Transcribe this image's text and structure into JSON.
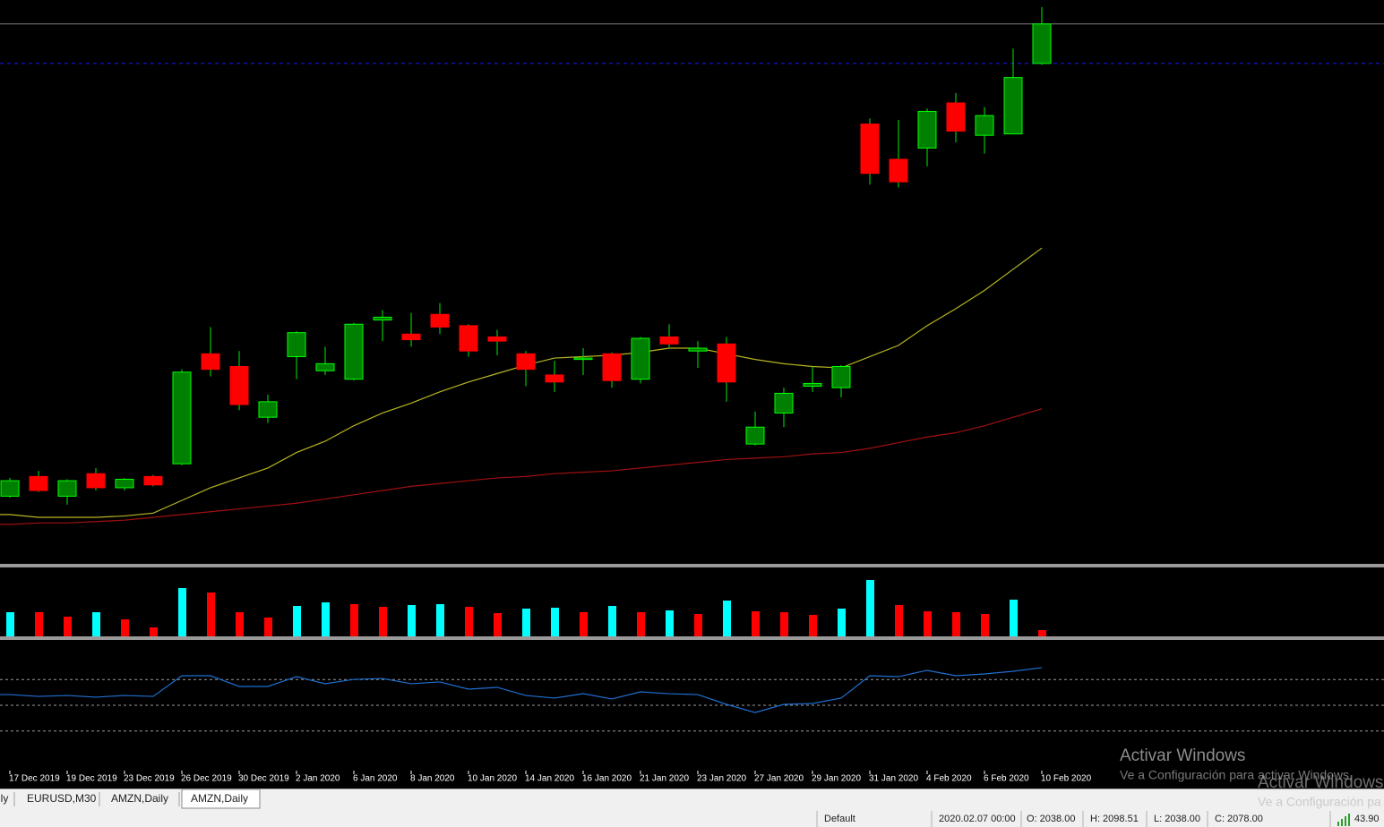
{
  "chart_data": {
    "type": "candlestick",
    "categories": [
      "17 Dec 2019",
      null,
      "19 Dec 2019",
      null,
      "23 Dec 2019",
      null,
      "26 Dec 2019",
      null,
      "30 Dec 2019",
      null,
      "2 Jan 2020",
      null,
      "6 Jan 2020",
      null,
      "8 Jan 2020",
      null,
      "10 Jan 2020",
      null,
      "14 Jan 2020",
      null,
      "16 Jan 2020",
      null,
      "21 Jan 2020",
      null,
      "23 Jan 2020",
      null,
      "27 Jan 2020",
      null,
      "29 Jan 2020",
      null,
      "31 Jan 2020",
      null,
      "4 Feb 2020",
      null,
      "6 Feb 2020",
      null,
      "10 Feb 2020"
    ],
    "open": [
      1781,
      1795,
      1781,
      1797,
      1787,
      1795,
      1804,
      1882,
      1873,
      1837,
      1880,
      1870,
      1864,
      1906,
      1896,
      1910,
      1902,
      1894,
      1882,
      1867,
      1878,
      1882,
      1864,
      1894,
      1884,
      1889,
      1818,
      1840,
      1859,
      1858,
      2045,
      2020,
      2028,
      2060,
      2037,
      2038,
      2088
    ],
    "high": [
      1794,
      1799,
      1793,
      1801,
      1794,
      1796,
      1871,
      1901,
      1884,
      1853,
      1898,
      1887,
      1904,
      1913,
      1911,
      1918,
      1903,
      1899,
      1884,
      1877,
      1886,
      1883,
      1894,
      1903,
      1891,
      1894,
      1841,
      1858,
      1873,
      1874,
      2049,
      2048,
      2056,
      2067,
      2057,
      2098.51,
      2128
    ],
    "low": [
      1780,
      1784,
      1775,
      1785,
      1785,
      1788,
      1803,
      1866,
      1842,
      1833,
      1864,
      1867,
      1863,
      1891,
      1887,
      1896,
      1880,
      1881,
      1859,
      1855,
      1867,
      1858,
      1861,
      1886,
      1872,
      1848,
      1817,
      1830,
      1855,
      1851,
      2002,
      2000,
      2015,
      2032,
      2024,
      2038,
      2087
    ],
    "close": [
      1792,
      1785,
      1792,
      1787,
      1793,
      1789,
      1869,
      1871,
      1846,
      1848,
      1897,
      1875,
      1903,
      1908,
      1892,
      1901,
      1884,
      1891,
      1871,
      1862,
      1879,
      1863,
      1893,
      1889,
      1886,
      1862,
      1830,
      1854,
      1861,
      1873,
      2010,
      2004,
      2054,
      2040,
      2051,
      2078,
      2116
    ],
    "up_color": "#008000",
    "up_border": "#00ff00",
    "down_color": "#ff0000",
    "wick_color": "#00c800",
    "ylim": [
      1733,
      2133
    ],
    "price_lines": [
      {
        "value": 2116,
        "color": "#808080",
        "dashed": false
      },
      {
        "value": 2088,
        "color": "#1a1aff",
        "dashed": true
      }
    ],
    "lines": [
      {
        "color": "#b5b520",
        "values": [
          1768,
          1766,
          1766,
          1766,
          1767,
          1769,
          1778,
          1787,
          1794,
          1801,
          1812,
          1820,
          1831,
          1840,
          1847,
          1855,
          1862,
          1868,
          1874,
          1879,
          1880,
          1881,
          1883,
          1886,
          1886,
          1882,
          1878,
          1875,
          1873,
          1872,
          1880,
          1888,
          1902,
          1914,
          1927,
          1942,
          1957
        ]
      },
      {
        "color": "#a01010",
        "values": [
          1761,
          1762,
          1762,
          1763,
          1764,
          1766,
          1768,
          1770,
          1772,
          1774,
          1776,
          1779,
          1782,
          1785,
          1788,
          1790,
          1792,
          1794,
          1795,
          1797,
          1798,
          1799,
          1801,
          1803,
          1805,
          1807,
          1808,
          1809,
          1811,
          1812,
          1815,
          1819,
          1823,
          1826,
          1831,
          1837,
          1843
        ]
      }
    ],
    "volume": {
      "ylim": [
        0,
        76
      ],
      "values": [
        27,
        27,
        22,
        27,
        19,
        10,
        54,
        49,
        27,
        21,
        34,
        38,
        36,
        33,
        35,
        36,
        33,
        26,
        31,
        32,
        27,
        34,
        27,
        29,
        25,
        40,
        28,
        27,
        24,
        31,
        63,
        35,
        28,
        27,
        25,
        41,
        7
      ],
      "colors": [
        "#00ffff",
        "#ff0000",
        "#ff0000",
        "#00ffff",
        "#ff0000",
        "#ff0000",
        "#00ffff",
        "#ff0000",
        "#ff0000",
        "#ff0000",
        "#00ffff",
        "#00ffff",
        "#ff0000",
        "#ff0000",
        "#00ffff",
        "#00ffff",
        "#ff0000",
        "#ff0000",
        "#00ffff",
        "#00ffff",
        "#ff0000",
        "#00ffff",
        "#ff0000",
        "#00ffff",
        "#ff0000",
        "#00ffff",
        "#ff0000",
        "#ff0000",
        "#ff0000",
        "#00ffff",
        "#00ffff",
        "#ff0000",
        "#ff0000",
        "#ff0000",
        "#ff0000",
        "#00ffff",
        "#ff0000"
      ]
    },
    "rsi": {
      "ylim": [
        0,
        100
      ],
      "levels": [
        70,
        50,
        30
      ],
      "color": "#1e6fd0",
      "values": [
        58.3,
        56.9,
        57.6,
        56.3,
        57.6,
        56.9,
        72.9,
        72.9,
        64.6,
        64.6,
        72.2,
        66.7,
        70.1,
        70.8,
        66.7,
        68.1,
        62.5,
        63.9,
        57.6,
        55.6,
        59.0,
        54.9,
        60.4,
        59.0,
        58.3,
        50.7,
        44.4,
        50.7,
        51.4,
        55.6,
        72.9,
        72.2,
        77.1,
        72.9,
        74.3,
        76.4,
        79.2
      ]
    }
  },
  "tabs": [
    "ily",
    "EURUSD,M30",
    "AMZN,Daily",
    "AMZN,Daily"
  ],
  "status_bar": [
    "Default",
    "2020.02.07 00:00",
    "O: 2038.00",
    "H: 2098.51",
    "L: 2038.00",
    "C: 2078.00",
    "43.90"
  ],
  "watermark": {
    "title": "Activar Windows",
    "text": "Ve a Configuración para activar Windows.",
    "ghost_title": "Activar Windows",
    "ghost_text": "Ve a Configuración pa"
  }
}
